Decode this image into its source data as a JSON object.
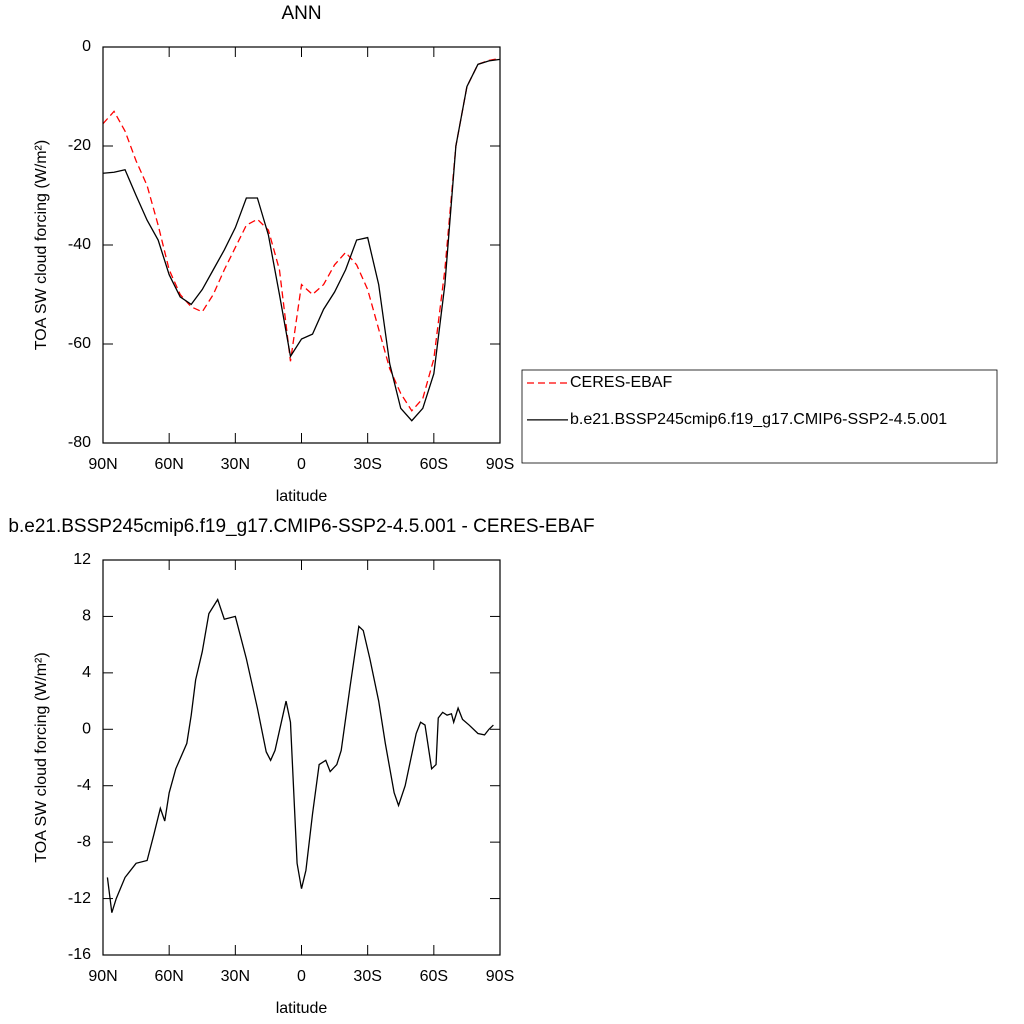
{
  "chart_data": [
    {
      "type": "line",
      "title": "ANN",
      "xlabel": "latitude",
      "ylabel": "TOA SW cloud forcing (W/m²)",
      "x": [
        90,
        85,
        80,
        75,
        70,
        65,
        60,
        55,
        50,
        45,
        40,
        35,
        30,
        25,
        20,
        15,
        10,
        5,
        0,
        -5,
        -10,
        -15,
        -20,
        -25,
        -30,
        -35,
        -40,
        -45,
        -50,
        -55,
        -60,
        -65,
        -70,
        -75,
        -80,
        -85,
        -90
      ],
      "series": [
        {
          "name": "CERES-EBAF",
          "color": "#ff0000",
          "line_style": "dashed",
          "values": [
            -15.5,
            -13,
            -17,
            -23,
            -28,
            -36,
            -45,
            -50,
            -52.5,
            -53.5,
            -50,
            -45,
            -40.5,
            -36,
            -34.8,
            -37,
            -45,
            -63.5,
            -48,
            -50,
            -48,
            -44,
            -41.5,
            -44,
            -49,
            -57,
            -65,
            -70,
            -73.5,
            -71,
            -63,
            -45,
            -20,
            -8,
            -3.5,
            -2.7,
            -2.3
          ]
        },
        {
          "name": "b.e21.BSSP245cmip6.f19_g17.CMIP6-SSP2-4.5.001",
          "color": "#000000",
          "line_style": "solid",
          "values": [
            -25.5,
            -25.3,
            -24.8,
            -30,
            -35,
            -39,
            -46,
            -50.5,
            -52,
            -49,
            -45,
            -41,
            -36.5,
            -30.5,
            -30.5,
            -38,
            -50,
            -62.5,
            -59,
            -58,
            -53,
            -49.5,
            -45,
            -39,
            -38.5,
            -48,
            -64,
            -73,
            -75.5,
            -73,
            -66,
            -48,
            -20,
            -8,
            -3.5,
            -2.8,
            -2.5
          ]
        }
      ],
      "xlim": [
        90,
        -90
      ],
      "xticks": [
        {
          "value": 90,
          "label": "90N"
        },
        {
          "value": 60,
          "label": "60N"
        },
        {
          "value": 30,
          "label": "30N"
        },
        0,
        {
          "value": -30,
          "label": "30S"
        },
        {
          "value": -60,
          "label": "60S"
        },
        {
          "value": -90,
          "label": "90S"
        }
      ],
      "ylim": [
        -80,
        0
      ],
      "yticks": [
        0,
        -20,
        -40,
        -60,
        -80
      ],
      "legend": "right"
    },
    {
      "type": "line",
      "title": "b.e21.BSSP245cmip6.f19_g17.CMIP6-SSP2-4.5.001 - CERES-EBAF",
      "xlabel": "latitude",
      "ylabel": "TOA SW cloud forcing (W/m²)",
      "x": [
        88,
        86,
        84,
        80,
        75,
        70,
        67,
        64,
        62,
        60,
        57,
        52,
        50,
        48,
        45,
        42,
        38,
        35,
        30,
        25,
        20,
        16,
        14,
        12,
        7,
        5,
        2,
        0,
        -2,
        -5,
        -8,
        -11,
        -13,
        -16,
        -18,
        -22,
        -26,
        -28,
        -31,
        -35,
        -38,
        -42,
        -44,
        -47,
        -52,
        -54,
        -56,
        -59,
        -61,
        -62,
        -64,
        -66,
        -68,
        -69,
        -71,
        -73,
        -76,
        -80,
        -83,
        -85,
        -87
      ],
      "series": [
        {
          "color": "#000000",
          "line_style": "solid",
          "values": [
            -10.5,
            -13,
            -12,
            -10.5,
            -9.5,
            -9.3,
            -7.5,
            -5.6,
            -6.5,
            -4.5,
            -2.8,
            -1,
            1,
            3.5,
            5.5,
            8.2,
            9.2,
            7.8,
            8,
            5,
            1.5,
            -1.6,
            -2.2,
            -1.5,
            2,
            0.5,
            -9.5,
            -11.3,
            -10,
            -6,
            -2.5,
            -2.2,
            -3,
            -2.5,
            -1.5,
            3,
            7.3,
            7,
            5,
            2,
            -1,
            -4.5,
            -5.4,
            -4,
            -0.3,
            0.5,
            0.3,
            -2.8,
            -2.5,
            0.8,
            1.2,
            1,
            1.1,
            0.5,
            1.5,
            0.7,
            0.3,
            -0.3,
            -0.4,
            0,
            0.3
          ]
        }
      ],
      "xlim": [
        90,
        -90
      ],
      "xticks": [
        {
          "value": 90,
          "label": "90N"
        },
        {
          "value": 60,
          "label": "60N"
        },
        {
          "value": 30,
          "label": "30N"
        },
        0,
        {
          "value": -30,
          "label": "30S"
        },
        {
          "value": -60,
          "label": "60S"
        },
        {
          "value": -90,
          "label": "90S"
        }
      ],
      "ylim": [
        -16,
        12
      ],
      "yticks": [
        12,
        8,
        4,
        0,
        -4,
        -8,
        -12,
        -16
      ]
    }
  ]
}
